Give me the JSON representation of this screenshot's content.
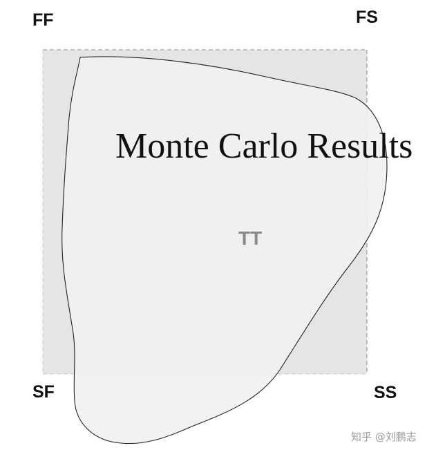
{
  "title": "Monte Carlo Results",
  "corners": {
    "top_left": "FF",
    "top_right": "FS",
    "bottom_left": "SF",
    "bottom_right": "SS"
  },
  "center_label": "TT",
  "watermark": "知乎 @刘鹏志",
  "colors": {
    "square_fill": "#e5e5e8",
    "square_border": "#888888",
    "region_fill": "#f2f0ef",
    "region_outline": "#222222",
    "title_text": "#111111",
    "center_label_text": "#8a8a8a",
    "watermark_text": "#9a9a9a"
  }
}
